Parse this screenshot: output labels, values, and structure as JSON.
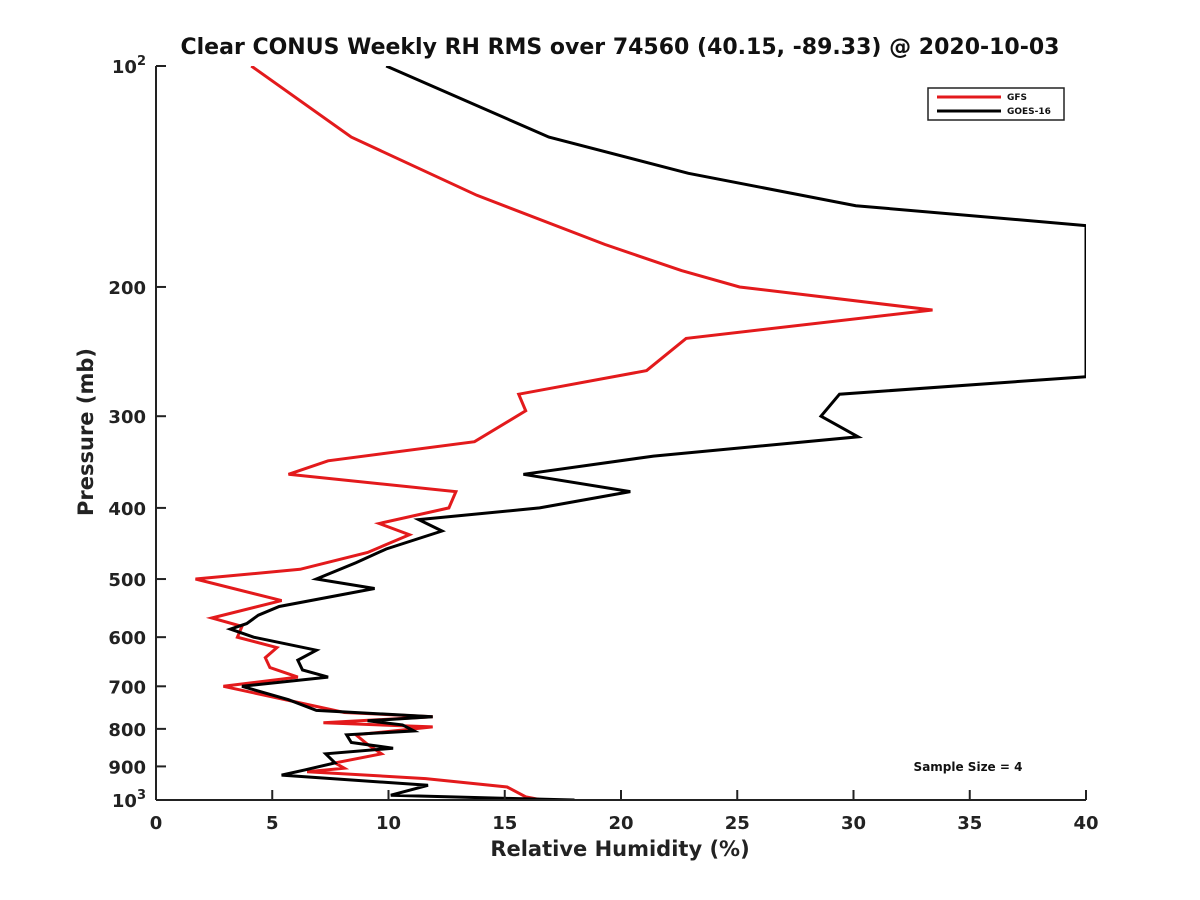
{
  "chart_data": {
    "type": "line",
    "title": "Clear CONUS Weekly RH RMS over 74560 (40.15, -89.33) @ 2020-10-03",
    "xlabel": "Relative Humidity (%)",
    "ylabel": "Pressure (mb)",
    "xlim": [
      0,
      40
    ],
    "ylim": [
      100,
      1000
    ],
    "yscale": "log",
    "y_reversed": true,
    "grid": false,
    "legend_position": "top-right",
    "xticks": [
      0,
      5,
      10,
      15,
      20,
      25,
      30,
      35,
      40
    ],
    "xtick_labels": [
      "0",
      "5",
      "10",
      "15",
      "20",
      "25",
      "30",
      "35",
      "40"
    ],
    "yticks": [
      100,
      200,
      300,
      400,
      500,
      600,
      700,
      800,
      900,
      1000
    ],
    "ytick_labels": [
      {
        "base": "10",
        "exp": "2"
      },
      {
        "base": "200",
        "exp": ""
      },
      {
        "base": "300",
        "exp": ""
      },
      {
        "base": "400",
        "exp": ""
      },
      {
        "base": "500",
        "exp": ""
      },
      {
        "base": "600",
        "exp": ""
      },
      {
        "base": "700",
        "exp": ""
      },
      {
        "base": "800",
        "exp": ""
      },
      {
        "base": "900",
        "exp": ""
      },
      {
        "base": "10",
        "exp": "3"
      }
    ],
    "annotation": "Sample Size = 4",
    "series": [
      {
        "name": "GFS",
        "color": "#e31a1c",
        "points": [
          [
            4.1,
            100
          ],
          [
            8.4,
            125
          ],
          [
            13.8,
            150
          ],
          [
            19.3,
            175
          ],
          [
            22.6,
            190
          ],
          [
            25.1,
            200
          ],
          [
            33.4,
            215
          ],
          [
            22.8,
            235
          ],
          [
            21.1,
            260
          ],
          [
            15.6,
            280
          ],
          [
            15.9,
            295
          ],
          [
            13.7,
            325
          ],
          [
            7.4,
            345
          ],
          [
            5.7,
            360
          ],
          [
            12.9,
            380
          ],
          [
            12.6,
            400
          ],
          [
            9.6,
            420
          ],
          [
            10.9,
            435
          ],
          [
            9.1,
            460
          ],
          [
            6.2,
            485
          ],
          [
            1.7,
            500
          ],
          [
            5.4,
            535
          ],
          [
            2.4,
            565
          ],
          [
            3.7,
            580
          ],
          [
            3.5,
            600
          ],
          [
            5.2,
            620
          ],
          [
            4.7,
            640
          ],
          [
            4.9,
            660
          ],
          [
            6.1,
            680
          ],
          [
            2.9,
            700
          ],
          [
            6.0,
            735
          ],
          [
            8.1,
            760
          ],
          [
            11.9,
            770
          ],
          [
            7.2,
            785
          ],
          [
            11.9,
            795
          ],
          [
            8.6,
            815
          ],
          [
            9.1,
            840
          ],
          [
            9.7,
            865
          ],
          [
            7.7,
            890
          ],
          [
            8.1,
            905
          ],
          [
            6.5,
            915
          ],
          [
            11.6,
            935
          ],
          [
            15.1,
            960
          ],
          [
            15.9,
            990
          ],
          [
            16.6,
            1000
          ]
        ]
      },
      {
        "name": "GOES-16",
        "color": "#000000",
        "points": [
          [
            9.9,
            100
          ],
          [
            16.9,
            125
          ],
          [
            22.9,
            140
          ],
          [
            30.1,
            155
          ],
          [
            40.0,
            165
          ],
          [
            40.0,
            265
          ],
          [
            29.4,
            280
          ],
          [
            28.6,
            300
          ],
          [
            30.2,
            320
          ],
          [
            21.4,
            340
          ],
          [
            15.8,
            360
          ],
          [
            20.4,
            380
          ],
          [
            16.5,
            400
          ],
          [
            11.3,
            415
          ],
          [
            12.3,
            430
          ],
          [
            9.9,
            455
          ],
          [
            8.6,
            475
          ],
          [
            6.9,
            500
          ],
          [
            9.4,
            515
          ],
          [
            5.3,
            545
          ],
          [
            4.4,
            560
          ],
          [
            3.9,
            575
          ],
          [
            3.2,
            585
          ],
          [
            4.2,
            600
          ],
          [
            6.9,
            625
          ],
          [
            6.1,
            645
          ],
          [
            6.3,
            665
          ],
          [
            7.4,
            680
          ],
          [
            3.7,
            700
          ],
          [
            5.7,
            730
          ],
          [
            6.9,
            755
          ],
          [
            11.9,
            770
          ],
          [
            9.1,
            780
          ],
          [
            10.6,
            790
          ],
          [
            11.1,
            805
          ],
          [
            8.2,
            815
          ],
          [
            8.4,
            835
          ],
          [
            10.2,
            850
          ],
          [
            7.3,
            865
          ],
          [
            7.7,
            890
          ],
          [
            6.4,
            910
          ],
          [
            5.4,
            925
          ],
          [
            11.7,
            955
          ],
          [
            10.1,
            985
          ],
          [
            15.1,
            995
          ],
          [
            18.0,
            1000
          ]
        ]
      }
    ]
  }
}
